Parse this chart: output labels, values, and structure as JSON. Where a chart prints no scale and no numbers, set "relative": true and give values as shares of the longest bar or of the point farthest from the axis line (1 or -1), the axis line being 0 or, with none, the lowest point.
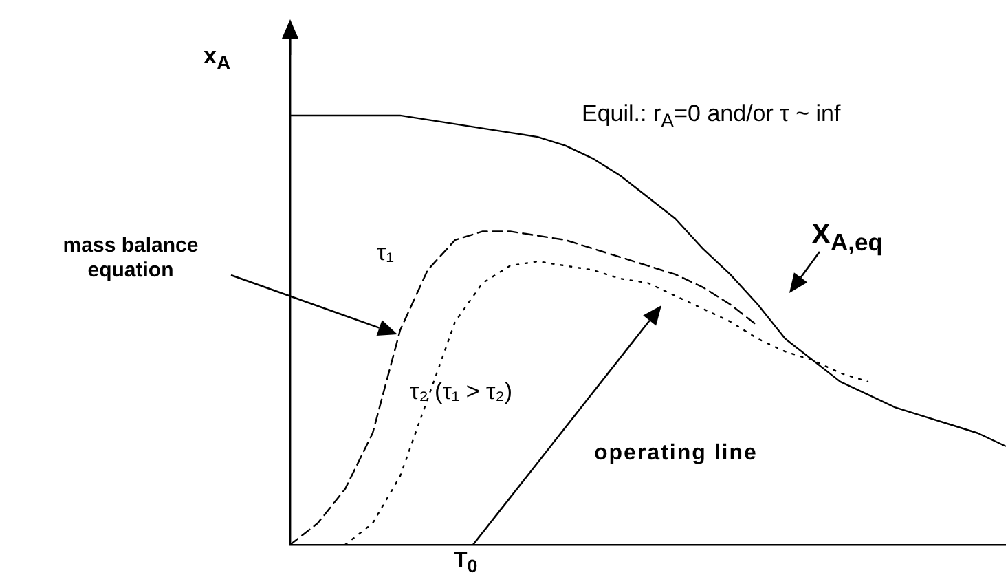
{
  "chart_data": {
    "type": "line",
    "relative": true,
    "categories": [
      null,
      null,
      null,
      null,
      null,
      null,
      null,
      null,
      null,
      null,
      null,
      null,
      null,
      null,
      null,
      null,
      null,
      null,
      null,
      null,
      null,
      null,
      null,
      null,
      null,
      null,
      null
    ],
    "ylabel": "x$_{A}$",
    "series": [
      {
        "name": "X$_{A,eq}$",
        "color": "#000000",
        "line_style": "solid",
        "values": [
          1.0,
          1.0,
          1.0,
          1.0,
          1.0,
          0.99,
          0.98,
          0.97,
          0.96,
          0.95,
          0.93,
          0.9,
          0.86,
          0.81,
          0.76,
          0.69,
          0.63,
          0.56,
          0.48,
          0.43,
          0.38,
          0.35,
          0.32,
          0.3,
          0.28,
          0.26,
          0.23
        ]
      },
      {
        "name": "τ₁",
        "color": "#000000",
        "line_style": "dashed",
        "values": [
          0,
          0.05,
          0.13,
          0.26,
          0.5,
          0.64,
          0.71,
          0.73,
          0.73,
          0.72,
          0.71,
          0.69,
          0.67,
          0.65,
          0.63,
          0.6,
          0.56,
          0.51,
          null,
          null,
          null,
          null,
          null,
          null,
          null,
          null,
          null
        ]
      },
      {
        "name": "τ₂ (τ₁ > τ₂)",
        "color": "#000000",
        "line_style": "dotted",
        "values": [
          null,
          null,
          0,
          0.05,
          0.16,
          0.34,
          0.52,
          0.61,
          0.65,
          0.66,
          0.65,
          0.64,
          0.62,
          0.61,
          0.58,
          0.55,
          0.52,
          0.48,
          0.45,
          0.43,
          0.4,
          0.38,
          null,
          null,
          null,
          null,
          null
        ]
      }
    ],
    "annotations": [
      "Equil.: r$_{A}$=0 and/or  τ ~ inf",
      "mass balance equation",
      "operating line",
      "T$_{0}$"
    ],
    "legend": false,
    "grid": false,
    "marker": "none"
  }
}
